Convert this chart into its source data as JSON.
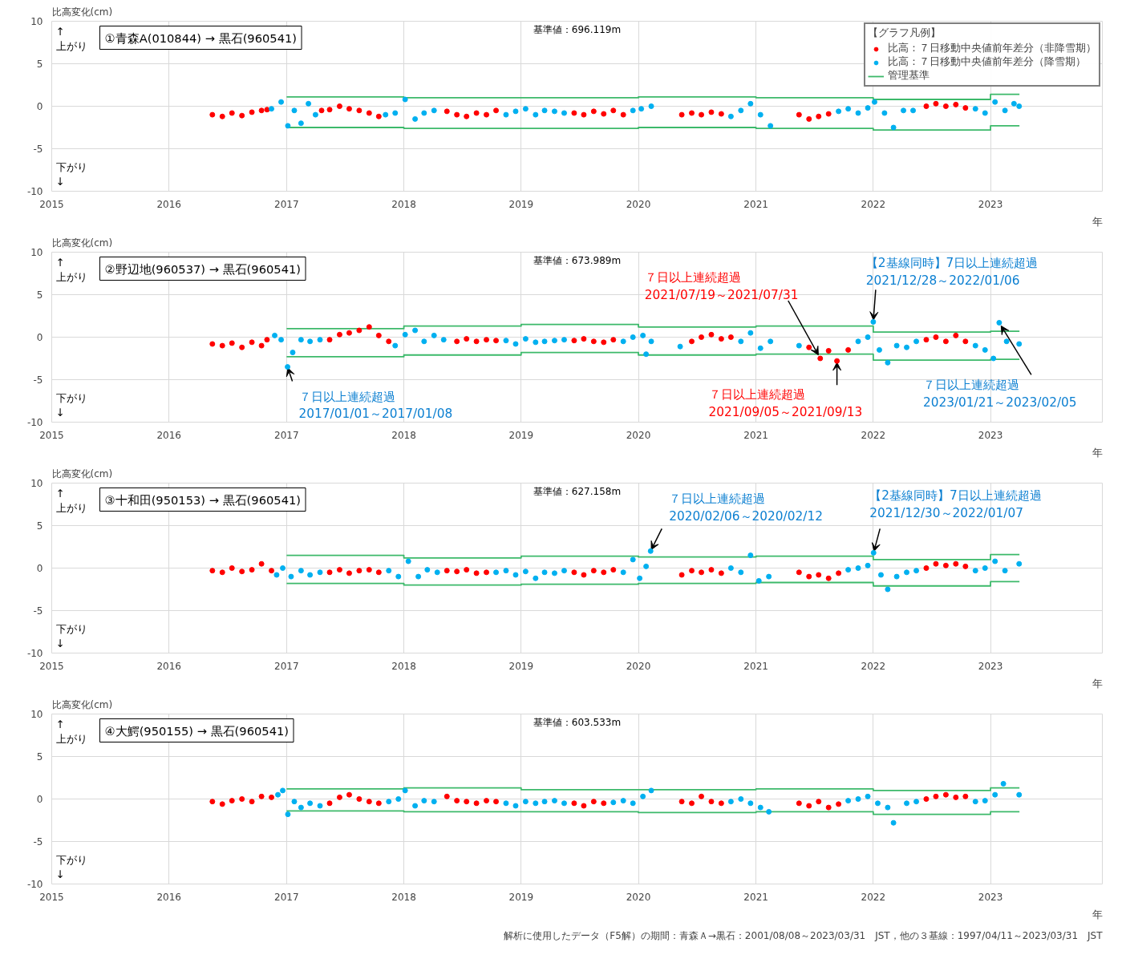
{
  "chart_data": [
    {
      "type": "scatter",
      "title": "①青森A(010844) → 黒石(960541)",
      "subtitle": "基準値：696.119m",
      "ylabel": "比高変化(cm)",
      "xlabel": "年",
      "legend_title": "【グラフ凡例】",
      "legend": "top right",
      "grid": true,
      "xlim": [
        "2015-01-01",
        "2023-12-15"
      ],
      "ylim": [
        -10,
        10
      ],
      "xticks": [
        "2015",
        "2016",
        "2017",
        "2018",
        "2019",
        "2020",
        "2021",
        "2022",
        "2023"
      ],
      "yticks": [
        -10,
        -5,
        0,
        5,
        10
      ],
      "annotations": [
        "↑\n上がり",
        "下がり\n↓"
      ],
      "series": [
        {
          "name": "比高：７日移動中央値前年差分（非降雪期）",
          "color": "#ff0000",
          "type": "scatter",
          "marker": "circle",
          "x": [
            "2016-05-15",
            "2016-06-15",
            "2016-07-15",
            "2016-08-15",
            "2016-09-15",
            "2016-10-15",
            "2016-11-01",
            "2017-04-20",
            "2017-05-15",
            "2017-06-15",
            "2017-07-15",
            "2017-08-15",
            "2017-09-15",
            "2017-10-15",
            "2018-05-15",
            "2018-06-15",
            "2018-07-15",
            "2018-08-15",
            "2018-09-15",
            "2018-10-15",
            "2019-06-15",
            "2019-07-15",
            "2019-08-15",
            "2019-09-15",
            "2019-10-15",
            "2019-11-15",
            "2020-05-15",
            "2020-06-15",
            "2020-07-15",
            "2020-08-15",
            "2020-09-15",
            "2021-05-15",
            "2021-06-15",
            "2021-07-15",
            "2021-08-15",
            "2022-06-15",
            "2022-07-15",
            "2022-08-15",
            "2022-09-15",
            "2022-10-15"
          ],
          "values": [
            -1.0,
            -1.2,
            -0.8,
            -1.1,
            -0.7,
            -0.5,
            -0.4,
            -0.5,
            -0.4,
            0.0,
            -0.3,
            -0.5,
            -0.8,
            -1.2,
            -0.6,
            -1.0,
            -1.2,
            -0.8,
            -1.0,
            -0.5,
            -0.8,
            -1.0,
            -0.6,
            -0.9,
            -0.5,
            -1.0,
            -1.0,
            -0.8,
            -1.0,
            -0.7,
            -0.9,
            -1.0,
            -1.5,
            -1.2,
            -0.9,
            0.0,
            0.3,
            0.0,
            0.2,
            -0.2
          ]
        },
        {
          "name": "比高：７日移動中央値前年差分（降雪期）",
          "color": "#00b0f0",
          "type": "scatter",
          "marker": "circle",
          "x": [
            "2016-11-15",
            "2016-12-15",
            "2017-01-05",
            "2017-01-25",
            "2017-02-15",
            "2017-03-10",
            "2017-04-01",
            "2017-11-05",
            "2017-12-05",
            "2018-01-05",
            "2018-02-05",
            "2018-03-05",
            "2018-04-05",
            "2018-11-15",
            "2018-12-15",
            "2019-01-15",
            "2019-02-15",
            "2019-03-15",
            "2019-04-15",
            "2019-05-15",
            "2019-12-15",
            "2020-01-10",
            "2020-02-10",
            "2020-10-15",
            "2020-11-15",
            "2020-12-15",
            "2021-01-15",
            "2021-02-15",
            "2021-09-15",
            "2021-10-15",
            "2021-11-15",
            "2021-12-15",
            "2022-01-05",
            "2022-02-05",
            "2022-03-05",
            "2022-04-05",
            "2022-05-05",
            "2022-11-15",
            "2022-12-15",
            "2023-01-15",
            "2023-02-15",
            "2023-03-15",
            "2023-03-31"
          ],
          "values": [
            -0.3,
            0.5,
            -2.3,
            -0.5,
            -2.0,
            0.3,
            -1.0,
            -1.0,
            -0.8,
            0.8,
            -1.5,
            -0.8,
            -0.5,
            -1.0,
            -0.6,
            -0.3,
            -1.0,
            -0.5,
            -0.6,
            -0.8,
            -0.5,
            -0.3,
            0.0,
            -1.2,
            -0.5,
            0.3,
            -1.0,
            -2.3,
            -0.6,
            -0.3,
            -0.8,
            -0.2,
            0.5,
            -0.8,
            -2.5,
            -0.5,
            -0.5,
            -0.3,
            -0.8,
            0.5,
            -0.5,
            0.3,
            0.0
          ]
        },
        {
          "name": "管理基準",
          "color": "#3cb96a",
          "type": "step",
          "x": [
            "2017-01-01",
            "2018-01-01",
            "2019-01-01",
            "2020-01-01",
            "2021-01-01",
            "2022-01-01",
            "2023-01-01",
            "2023-04-01"
          ],
          "values": [
            1.1,
            1.0,
            1.0,
            1.1,
            1.0,
            0.8,
            1.4,
            1.4
          ]
        },
        {
          "color": "#3cb96a",
          "type": "step",
          "x": [
            "2017-01-01",
            "2018-01-01",
            "2019-01-01",
            "2020-01-01",
            "2021-01-01",
            "2022-01-01",
            "2023-01-01",
            "2023-04-01"
          ],
          "values": [
            -2.5,
            -2.6,
            -2.6,
            -2.5,
            -2.6,
            -2.8,
            -2.3,
            -2.3
          ]
        }
      ]
    },
    {
      "type": "scatter",
      "title": "②野辺地(960537) → 黒石(960541)",
      "subtitle": "基準値：673.989m",
      "ylabel": "比高変化(cm)",
      "xlabel": "年",
      "grid": true,
      "xlim": [
        "2015-01-01",
        "2023-12-15"
      ],
      "ylim": [
        -10,
        10
      ],
      "xticks": [
        "2015",
        "2016",
        "2017",
        "2018",
        "2019",
        "2020",
        "2021",
        "2022",
        "2023"
      ],
      "yticks": [
        -10,
        -5,
        0,
        5,
        10
      ],
      "annotations": [
        "↑\n上がり",
        "下がり\n↓",
        {
          "text": "７日以上連続超過\n2017/01/01～2017/01/08",
          "x": "2017-01-04",
          "y": -3.5
        },
        {
          "text": "７日以上連続超過\n2021/07/19～2021/07/31",
          "x": "2021-07-20",
          "y": -2.5
        },
        {
          "text": "７日以上連続超過\n2021/09/05～2021/09/13",
          "x": "2021-09-10",
          "y": -2.8
        },
        {
          "text": "【2基線同時】7日以上連続超過\n2021/12/28～2022/01/06",
          "x": "2022-01-01",
          "y": 1.8
        },
        {
          "text": "７日以上連続超過\n2023/01/21～2023/02/05",
          "x": "2023-01-28",
          "y": 1.7
        }
      ],
      "series": [
        {
          "color": "#ff0000",
          "type": "scatter",
          "x": [
            "2016-05-15",
            "2016-06-15",
            "2016-07-15",
            "2016-08-15",
            "2016-09-15",
            "2016-10-15",
            "2016-11-01",
            "2017-05-15",
            "2017-06-15",
            "2017-07-15",
            "2017-08-15",
            "2017-09-15",
            "2017-10-15",
            "2017-11-15",
            "2018-06-15",
            "2018-07-15",
            "2018-08-15",
            "2018-09-15",
            "2018-10-15",
            "2019-06-15",
            "2019-07-15",
            "2019-08-15",
            "2019-09-15",
            "2019-10-15",
            "2020-06-15",
            "2020-07-15",
            "2020-08-15",
            "2020-09-15",
            "2020-10-15",
            "2021-06-15",
            "2021-07-20",
            "2021-08-15",
            "2021-09-10",
            "2021-10-15",
            "2022-06-15",
            "2022-07-15",
            "2022-08-15",
            "2022-09-15",
            "2022-10-15"
          ],
          "values": [
            -0.8,
            -1.0,
            -0.7,
            -1.2,
            -0.6,
            -1.0,
            -0.3,
            -0.3,
            0.3,
            0.5,
            0.8,
            1.2,
            0.2,
            -0.5,
            -0.5,
            -0.2,
            -0.5,
            -0.3,
            -0.4,
            -0.4,
            -0.2,
            -0.5,
            -0.6,
            -0.3,
            -0.5,
            0.0,
            0.3,
            -0.2,
            0.0,
            -1.2,
            -2.5,
            -1.6,
            -2.8,
            -1.5,
            -0.3,
            0.0,
            -0.5,
            0.2,
            -0.5
          ],
          "marker": "circle"
        },
        {
          "color": "#00b0f0",
          "type": "scatter",
          "x": [
            "2016-11-25",
            "2016-12-15",
            "2017-01-04",
            "2017-01-20",
            "2017-02-15",
            "2017-03-15",
            "2017-04-15",
            "2017-12-05",
            "2018-01-05",
            "2018-02-05",
            "2018-03-05",
            "2018-04-05",
            "2018-05-05",
            "2018-11-15",
            "2018-12-15",
            "2019-01-15",
            "2019-02-15",
            "2019-03-15",
            "2019-04-15",
            "2019-05-15",
            "2019-11-15",
            "2019-12-15",
            "2020-01-15",
            "2020-01-25",
            "2020-02-10",
            "2020-05-10",
            "2020-11-15",
            "2020-12-15",
            "2021-01-15",
            "2021-02-15",
            "2021-05-15",
            "2021-11-15",
            "2021-12-15",
            "2022-01-01",
            "2022-01-20",
            "2022-02-15",
            "2022-03-15",
            "2022-04-15",
            "2022-05-15",
            "2022-11-15",
            "2022-12-15",
            "2023-01-10",
            "2023-01-28",
            "2023-02-20",
            "2023-03-31"
          ],
          "values": [
            0.2,
            -0.3,
            -3.5,
            -1.8,
            -0.3,
            -0.5,
            -0.3,
            -1.0,
            0.3,
            0.8,
            -0.5,
            0.2,
            -0.3,
            -0.4,
            -0.8,
            -0.2,
            -0.6,
            -0.5,
            -0.4,
            -0.3,
            -0.5,
            0.0,
            0.2,
            -2.0,
            -0.5,
            -1.1,
            -0.5,
            0.5,
            -1.3,
            -0.5,
            -1.0,
            -0.5,
            0.0,
            1.8,
            -1.5,
            -3.0,
            -1.0,
            -1.2,
            -0.5,
            -1.0,
            -1.5,
            -2.5,
            1.7,
            -0.5,
            -0.8
          ],
          "marker": "circle"
        },
        {
          "color": "#3cb96a",
          "type": "step",
          "x": [
            "2017-01-01",
            "2018-01-01",
            "2019-01-01",
            "2020-01-01",
            "2021-01-01",
            "2022-01-01",
            "2023-01-01",
            "2023-04-01"
          ],
          "values": [
            1.0,
            1.3,
            1.5,
            1.2,
            1.3,
            0.6,
            0.7,
            0.7
          ]
        },
        {
          "color": "#3cb96a",
          "type": "step",
          "x": [
            "2017-01-01",
            "2018-01-01",
            "2019-01-01",
            "2020-01-01",
            "2021-01-01",
            "2022-01-01",
            "2023-01-01",
            "2023-04-01"
          ],
          "values": [
            -2.3,
            -2.1,
            -1.8,
            -2.1,
            -2.0,
            -2.7,
            -2.6,
            -2.6
          ]
        }
      ]
    },
    {
      "type": "scatter",
      "title": "③十和田(950153) → 黒石(960541)",
      "subtitle": "基準値：627.158m",
      "ylabel": "比高変化(cm)",
      "xlabel": "年",
      "grid": true,
      "xlim": [
        "2015-01-01",
        "2023-12-15"
      ],
      "ylim": [
        -10,
        10
      ],
      "xticks": [
        "2015",
        "2016",
        "2017",
        "2018",
        "2019",
        "2020",
        "2021",
        "2022",
        "2023"
      ],
      "yticks": [
        -10,
        -5,
        0,
        5,
        10
      ],
      "annotations": [
        "↑\n上がり",
        "下がり\n↓",
        {
          "text": "７日以上連続超過\n2020/02/06～2020/02/12",
          "x": "2020-02-08",
          "y": 2.0
        },
        {
          "text": "【2基線同時】7日以上連続超過\n2021/12/30～2022/01/07",
          "x": "2022-01-02",
          "y": 1.8
        }
      ],
      "series": [
        {
          "color": "#ff0000",
          "type": "scatter",
          "x": [
            "2016-05-15",
            "2016-06-15",
            "2016-07-15",
            "2016-08-15",
            "2016-09-15",
            "2016-10-15",
            "2016-11-15",
            "2017-05-15",
            "2017-06-15",
            "2017-07-15",
            "2017-08-15",
            "2017-09-15",
            "2017-10-15",
            "2018-05-15",
            "2018-06-15",
            "2018-07-15",
            "2018-08-15",
            "2018-09-15",
            "2019-06-15",
            "2019-07-15",
            "2019-08-15",
            "2019-09-15",
            "2019-10-15",
            "2020-05-15",
            "2020-06-15",
            "2020-07-15",
            "2020-08-15",
            "2020-09-15",
            "2021-05-15",
            "2021-06-15",
            "2021-07-15",
            "2021-08-15",
            "2021-09-15",
            "2022-06-15",
            "2022-07-15",
            "2022-08-15",
            "2022-09-15",
            "2022-10-15"
          ],
          "values": [
            -0.3,
            -0.5,
            0.0,
            -0.4,
            -0.2,
            0.5,
            -0.3,
            -0.5,
            -0.2,
            -0.6,
            -0.3,
            -0.2,
            -0.5,
            -0.3,
            -0.4,
            -0.2,
            -0.6,
            -0.5,
            -0.5,
            -0.8,
            -0.3,
            -0.5,
            -0.2,
            -0.8,
            -0.3,
            -0.5,
            -0.2,
            -0.6,
            -0.5,
            -1.0,
            -0.8,
            -1.2,
            -0.6,
            0.0,
            0.5,
            0.3,
            0.5,
            0.2
          ],
          "marker": "circle"
        },
        {
          "color": "#00b0f0",
          "type": "scatter",
          "x": [
            "2016-12-01",
            "2016-12-20",
            "2017-01-15",
            "2017-02-15",
            "2017-03-15",
            "2017-04-15",
            "2017-11-15",
            "2017-12-15",
            "2018-01-15",
            "2018-02-15",
            "2018-03-15",
            "2018-04-15",
            "2018-10-15",
            "2018-11-15",
            "2018-12-15",
            "2019-01-15",
            "2019-02-15",
            "2019-03-15",
            "2019-04-15",
            "2019-05-15",
            "2019-11-15",
            "2019-12-15",
            "2020-01-05",
            "2020-01-25",
            "2020-02-08",
            "2020-10-15",
            "2020-11-15",
            "2020-12-15",
            "2021-01-10",
            "2021-02-10",
            "2021-10-15",
            "2021-11-15",
            "2021-12-15",
            "2022-01-02",
            "2022-01-25",
            "2022-02-15",
            "2022-03-15",
            "2022-04-15",
            "2022-05-15",
            "2022-11-15",
            "2022-12-15",
            "2023-01-15",
            "2023-02-15",
            "2023-03-31"
          ],
          "values": [
            -0.8,
            0.0,
            -1.0,
            -0.3,
            -0.8,
            -0.5,
            -0.3,
            -1.0,
            0.8,
            -1.0,
            -0.2,
            -0.5,
            -0.5,
            -0.3,
            -0.8,
            -0.4,
            -1.2,
            -0.5,
            -0.6,
            -0.3,
            -0.5,
            1.0,
            -1.2,
            0.2,
            2.0,
            0.0,
            -0.5,
            1.5,
            -1.5,
            -1.0,
            -0.2,
            0.0,
            0.3,
            1.8,
            -0.8,
            -2.5,
            -1.0,
            -0.5,
            -0.3,
            -0.3,
            0.0,
            0.8,
            -0.3,
            0.5
          ],
          "marker": "circle"
        },
        {
          "color": "#3cb96a",
          "type": "step",
          "x": [
            "2017-01-01",
            "2018-01-01",
            "2019-01-01",
            "2020-01-01",
            "2021-01-01",
            "2022-01-01",
            "2023-01-01",
            "2023-04-01"
          ],
          "values": [
            1.5,
            1.2,
            1.4,
            1.3,
            1.4,
            1.0,
            1.6,
            1.6
          ]
        },
        {
          "color": "#3cb96a",
          "type": "step",
          "x": [
            "2017-01-01",
            "2018-01-01",
            "2019-01-01",
            "2020-01-01",
            "2021-01-01",
            "2022-01-01",
            "2023-01-01",
            "2023-04-01"
          ],
          "values": [
            -1.8,
            -2.0,
            -1.9,
            -1.8,
            -1.7,
            -2.1,
            -1.6,
            -1.6
          ]
        }
      ]
    },
    {
      "type": "scatter",
      "title": "④大鰐(950155) → 黒石(960541)",
      "subtitle": "基準値：603.533m",
      "ylabel": "比高変化(cm)",
      "xlabel": "年",
      "grid": true,
      "xlim": [
        "2015-01-01",
        "2023-12-15"
      ],
      "ylim": [
        -10,
        10
      ],
      "xticks": [
        "2015",
        "2016",
        "2017",
        "2018",
        "2019",
        "2020",
        "2021",
        "2022",
        "2023"
      ],
      "yticks": [
        -10,
        -5,
        0,
        5,
        10
      ],
      "annotations": [
        "↑\n上がり",
        "下がり\n↓",
        "解析に使用したデータ（F5解）の期間：青森Ａ→黒石：2001/08/08～2023/03/31　JST，他の３基線：1997/04/11～2023/03/31　JST"
      ],
      "series": [
        {
          "color": "#ff0000",
          "type": "scatter",
          "x": [
            "2016-05-15",
            "2016-06-15",
            "2016-07-15",
            "2016-08-15",
            "2016-09-15",
            "2016-10-15",
            "2016-11-15",
            "2017-05-15",
            "2017-06-15",
            "2017-07-15",
            "2017-08-15",
            "2017-09-15",
            "2017-10-15",
            "2018-05-15",
            "2018-06-15",
            "2018-07-15",
            "2018-08-15",
            "2018-09-15",
            "2018-10-15",
            "2019-06-15",
            "2019-07-15",
            "2019-08-15",
            "2019-09-15",
            "2020-05-15",
            "2020-06-15",
            "2020-07-15",
            "2020-08-15",
            "2020-09-15",
            "2021-05-15",
            "2021-06-15",
            "2021-07-15",
            "2021-08-15",
            "2021-09-15",
            "2022-06-15",
            "2022-07-15",
            "2022-08-15",
            "2022-09-15",
            "2022-10-15"
          ],
          "values": [
            -0.3,
            -0.6,
            -0.2,
            0.0,
            -0.3,
            0.3,
            0.2,
            -0.5,
            0.2,
            0.5,
            0.0,
            -0.3,
            -0.5,
            0.3,
            -0.2,
            -0.3,
            -0.5,
            -0.2,
            -0.3,
            -0.5,
            -0.8,
            -0.3,
            -0.5,
            -0.3,
            -0.5,
            0.3,
            -0.3,
            -0.5,
            -0.5,
            -0.8,
            -0.3,
            -1.0,
            -0.6,
            0.0,
            0.3,
            0.5,
            0.2,
            0.3
          ],
          "marker": "circle"
        },
        {
          "color": "#00b0f0",
          "type": "scatter",
          "x": [
            "2016-12-05",
            "2016-12-20",
            "2017-01-05",
            "2017-01-25",
            "2017-02-15",
            "2017-03-15",
            "2017-04-15",
            "2017-11-15",
            "2017-12-15",
            "2018-01-05",
            "2018-02-05",
            "2018-03-05",
            "2018-04-05",
            "2018-11-15",
            "2018-12-15",
            "2019-01-15",
            "2019-02-15",
            "2019-03-15",
            "2019-04-15",
            "2019-05-15",
            "2019-10-15",
            "2019-11-15",
            "2019-12-15",
            "2020-01-15",
            "2020-02-10",
            "2020-10-15",
            "2020-11-15",
            "2020-12-15",
            "2021-01-15",
            "2021-02-10",
            "2021-10-15",
            "2021-11-15",
            "2021-12-15",
            "2022-01-15",
            "2022-02-15",
            "2022-03-05",
            "2022-04-15",
            "2022-05-15",
            "2022-11-15",
            "2022-12-15",
            "2023-01-15",
            "2023-02-10",
            "2023-03-31"
          ],
          "values": [
            0.5,
            1.0,
            -1.8,
            -0.3,
            -1.0,
            -0.5,
            -0.8,
            -0.3,
            0.0,
            1.0,
            -0.8,
            -0.2,
            -0.3,
            -0.5,
            -0.8,
            -0.3,
            -0.5,
            -0.3,
            -0.2,
            -0.5,
            -0.4,
            -0.2,
            -0.5,
            0.3,
            1.0,
            -0.3,
            0.0,
            -0.5,
            -1.0,
            -1.5,
            -0.2,
            0.0,
            0.3,
            -0.5,
            -1.0,
            -2.8,
            -0.5,
            -0.3,
            -0.3,
            -0.2,
            0.5,
            1.8,
            0.5
          ],
          "marker": "circle"
        },
        {
          "color": "#3cb96a",
          "type": "step",
          "x": [
            "2017-01-01",
            "2018-01-01",
            "2019-01-01",
            "2020-01-01",
            "2021-01-01",
            "2022-01-01",
            "2023-01-01",
            "2023-04-01"
          ],
          "values": [
            1.2,
            1.3,
            1.1,
            1.1,
            1.2,
            1.0,
            1.3,
            1.3
          ]
        },
        {
          "color": "#3cb96a",
          "type": "step",
          "x": [
            "2017-01-01",
            "2018-01-01",
            "2019-01-01",
            "2020-01-01",
            "2021-01-01",
            "2022-01-01",
            "2023-01-01",
            "2023-04-01"
          ],
          "values": [
            -1.4,
            -1.5,
            -1.5,
            -1.6,
            -1.5,
            -1.8,
            -1.5,
            -1.5
          ]
        }
      ]
    }
  ]
}
